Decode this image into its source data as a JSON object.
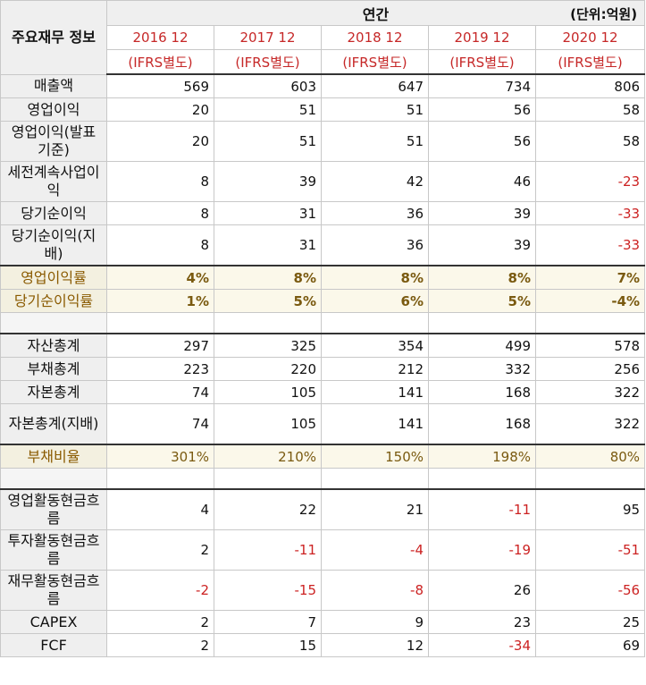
{
  "header": {
    "corner": "주요재무\n정보",
    "annual": "연간",
    "unit": "(단위:억원)",
    "years": [
      "2016 12",
      "2017 12",
      "2018 12",
      "2019 12",
      "2020 12"
    ],
    "basis": "(IFRS별도)"
  },
  "rows": {
    "revenue": {
      "label": "매출액",
      "values": [
        "569",
        "603",
        "647",
        "734",
        "806"
      ]
    },
    "op_income": {
      "label": "영업이익",
      "values": [
        "20",
        "51",
        "51",
        "56",
        "58"
      ]
    },
    "op_income_reported": {
      "label": "영업이익(발표기준)",
      "values": [
        "20",
        "51",
        "51",
        "56",
        "58"
      ]
    },
    "pretax_cont": {
      "label": "세전계속사업이익",
      "values": [
        "8",
        "39",
        "42",
        "46",
        "-23"
      ]
    },
    "net_income": {
      "label": "당기순이익",
      "values": [
        "8",
        "31",
        "36",
        "39",
        "-33"
      ]
    },
    "net_income_parent": {
      "label": "당기순이익(지배)",
      "values": [
        "8",
        "31",
        "36",
        "39",
        "-33"
      ]
    },
    "op_margin": {
      "label": "영업이익률",
      "values": [
        "4%",
        "8%",
        "8%",
        "8%",
        "7%"
      ]
    },
    "net_margin": {
      "label": "당기순이익률",
      "values": [
        "1%",
        "5%",
        "6%",
        "5%",
        "-4%"
      ]
    },
    "total_assets": {
      "label": "자산총계",
      "values": [
        "297",
        "325",
        "354",
        "499",
        "578"
      ]
    },
    "total_liab": {
      "label": "부채총계",
      "values": [
        "223",
        "220",
        "212",
        "332",
        "256"
      ]
    },
    "total_equity": {
      "label": "자본총계",
      "values": [
        "74",
        "105",
        "141",
        "168",
        "322"
      ]
    },
    "equity_parent": {
      "label": "자본총계(지배)",
      "values": [
        "74",
        "105",
        "141",
        "168",
        "322"
      ]
    },
    "debt_ratio": {
      "label": "부채비율",
      "values": [
        "301%",
        "210%",
        "150%",
        "198%",
        "80%"
      ]
    },
    "cf_operating": {
      "label": "영업활동현금흐름",
      "values": [
        "4",
        "22",
        "21",
        "-11",
        "95"
      ]
    },
    "cf_investing": {
      "label": "투자활동현금흐름",
      "values": [
        "2",
        "-11",
        "-4",
        "-19",
        "-51"
      ]
    },
    "cf_financing": {
      "label": "재무활동현금흐름",
      "values": [
        "-2",
        "-15",
        "-8",
        "26",
        "-56"
      ]
    },
    "capex": {
      "label": "CAPEX",
      "values": [
        "2",
        "7",
        "9",
        "23",
        "25"
      ]
    },
    "fcf": {
      "label": "FCF",
      "values": [
        "2",
        "15",
        "12",
        "-34",
        "69"
      ]
    }
  },
  "colors": {
    "negative": "#cc2222",
    "year_header": "#c62828",
    "ratio_text": "#7a5a10"
  }
}
